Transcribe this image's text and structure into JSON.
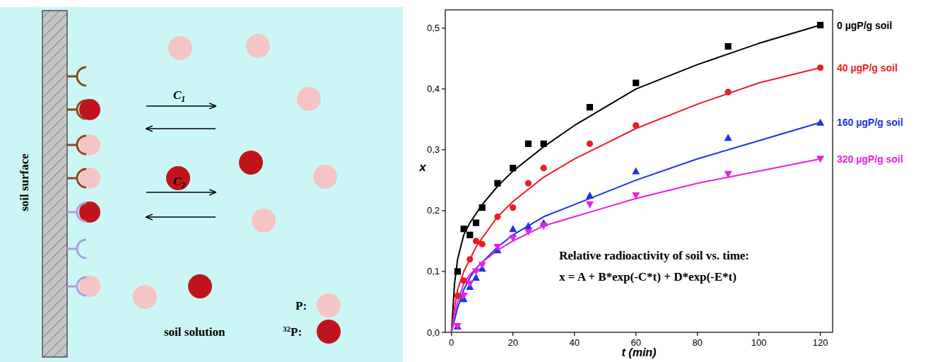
{
  "chart_data": {
    "type": "scatter",
    "x_label": "t (min)",
    "y_label": "x",
    "xlim": [
      -2,
      124
    ],
    "ylim": [
      0,
      0.53
    ],
    "xticks": [
      0,
      20,
      40,
      60,
      80,
      100,
      120
    ],
    "yticks": [
      {
        "value": 0,
        "label": "0,0"
      },
      {
        "value": 0.1,
        "label": "0,1"
      },
      {
        "value": 0.2,
        "label": "0,2"
      },
      {
        "value": 0.3,
        "label": "0,3"
      },
      {
        "value": 0.4,
        "label": "0,4"
      },
      {
        "value": 0.5,
        "label": "0,5"
      }
    ],
    "annotations": [
      "Relative radioactivity of soil vs. time:",
      "x = A + B*exp(-C*t) + D*exp(-E*t)"
    ],
    "series": [
      {
        "name": "0 µgP/g soil",
        "color": "#000000",
        "marker": "square",
        "x": [
          2,
          4,
          6,
          8,
          10,
          15,
          20,
          25,
          30,
          45,
          60,
          90,
          120
        ],
        "values": [
          0.1,
          0.17,
          0.16,
          0.18,
          0.205,
          0.245,
          0.27,
          0.31,
          0.31,
          0.37,
          0.41,
          0.47,
          0.505
        ],
        "curve": {
          "x": [
            0,
            1,
            2,
            4,
            6,
            8,
            10,
            15,
            20,
            30,
            40,
            50,
            60,
            80,
            100,
            120
          ],
          "values": [
            0,
            0.08,
            0.12,
            0.16,
            0.18,
            0.195,
            0.21,
            0.24,
            0.265,
            0.305,
            0.34,
            0.37,
            0.4,
            0.44,
            0.475,
            0.505
          ]
        }
      },
      {
        "name": "40 µgP/g soil",
        "color": "#ee1c25",
        "marker": "circle",
        "x": [
          2,
          4,
          6,
          8,
          10,
          15,
          20,
          25,
          30,
          45,
          60,
          90,
          120
        ],
        "values": [
          0.06,
          0.085,
          0.12,
          0.15,
          0.145,
          0.19,
          0.205,
          0.245,
          0.27,
          0.31,
          0.34,
          0.395,
          0.435
        ],
        "curve": {
          "x": [
            0,
            1,
            2,
            4,
            6,
            8,
            10,
            15,
            20,
            30,
            40,
            50,
            60,
            80,
            100,
            120
          ],
          "values": [
            0,
            0.04,
            0.07,
            0.1,
            0.12,
            0.14,
            0.155,
            0.19,
            0.215,
            0.255,
            0.285,
            0.31,
            0.335,
            0.375,
            0.41,
            0.435
          ]
        }
      },
      {
        "name": "160 µgP/g soil",
        "color": "#1a33e6",
        "marker": "triangle",
        "x": [
          2,
          4,
          6,
          8,
          10,
          15,
          20,
          25,
          30,
          45,
          60,
          90,
          120
        ],
        "values": [
          0.01,
          0.055,
          0.075,
          0.09,
          0.105,
          0.135,
          0.17,
          0.175,
          0.18,
          0.225,
          0.265,
          0.32,
          0.345
        ],
        "curve": {
          "x": [
            0,
            1,
            2,
            4,
            6,
            8,
            10,
            15,
            20,
            30,
            40,
            50,
            60,
            80,
            100,
            120
          ],
          "values": [
            0,
            0.02,
            0.04,
            0.07,
            0.09,
            0.105,
            0.115,
            0.14,
            0.16,
            0.19,
            0.21,
            0.23,
            0.25,
            0.285,
            0.315,
            0.345
          ]
        }
      },
      {
        "name": "320 µgP/g soil",
        "color": "#e81ee8",
        "marker": "triangle-down",
        "x": [
          2,
          4,
          6,
          8,
          10,
          15,
          20,
          25,
          30,
          45,
          60,
          90,
          120
        ],
        "values": [
          0.01,
          0.06,
          0.08,
          0.1,
          0.11,
          0.14,
          0.155,
          0.165,
          0.175,
          0.21,
          0.225,
          0.26,
          0.285
        ],
        "curve": {
          "x": [
            0,
            1,
            2,
            4,
            6,
            8,
            10,
            15,
            20,
            30,
            40,
            50,
            60,
            80,
            100,
            120
          ],
          "values": [
            0,
            0.03,
            0.05,
            0.08,
            0.095,
            0.105,
            0.115,
            0.135,
            0.15,
            0.175,
            0.19,
            0.205,
            0.22,
            0.245,
            0.265,
            0.285
          ]
        }
      }
    ]
  },
  "diagram": {
    "surface_label": "soil surface",
    "solution_label": "soil solution",
    "arrows": [
      {
        "label": "C",
        "subscript": "1"
      },
      {
        "label": "C",
        "subscript": "2"
      }
    ],
    "legend": [
      {
        "label": "P:"
      },
      {
        "superscript": "32",
        "label": "P:"
      }
    ]
  }
}
